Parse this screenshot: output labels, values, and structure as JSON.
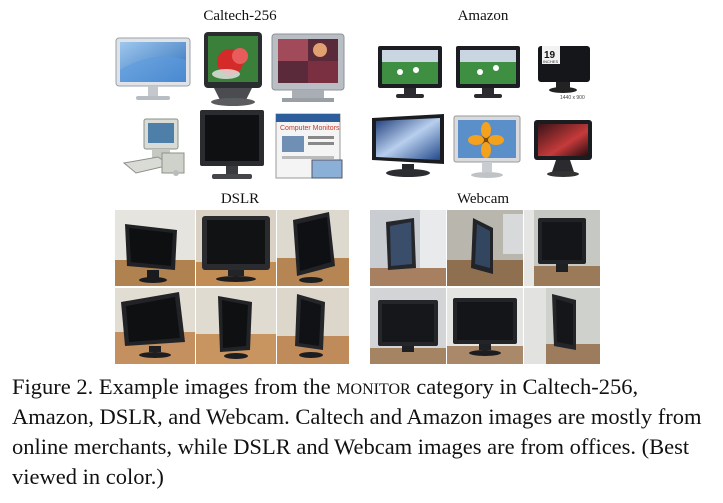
{
  "figure": {
    "panels": [
      {
        "id": "caltech",
        "title": "Caltech-256"
      },
      {
        "id": "amazon",
        "title": "Amazon"
      },
      {
        "id": "dslr",
        "title": "DSLR"
      },
      {
        "id": "webcam",
        "title": "Webcam"
      }
    ],
    "amazon_badge_number": "19",
    "amazon_badge_word": "INCHES",
    "amazon_resolution": "1440 x 900",
    "caltech_book_title": "Computer Monitors"
  },
  "caption": {
    "lead": "Figure 2. Example images from the ",
    "category": "monitor",
    "rest": " category in Caltech-256, Amazon, DSLR, and Webcam. Caltech and Amazon images are mostly from online merchants, while DSLR and Webcam images are from offices. (Best viewed in color.)"
  },
  "colors": {
    "screen_dark": "#1b1d22",
    "bezel_silver": "#c8ccd1",
    "desk_wood": "#b08250",
    "office_wall": "#d7d9d6",
    "monitor_black": "#202124"
  }
}
